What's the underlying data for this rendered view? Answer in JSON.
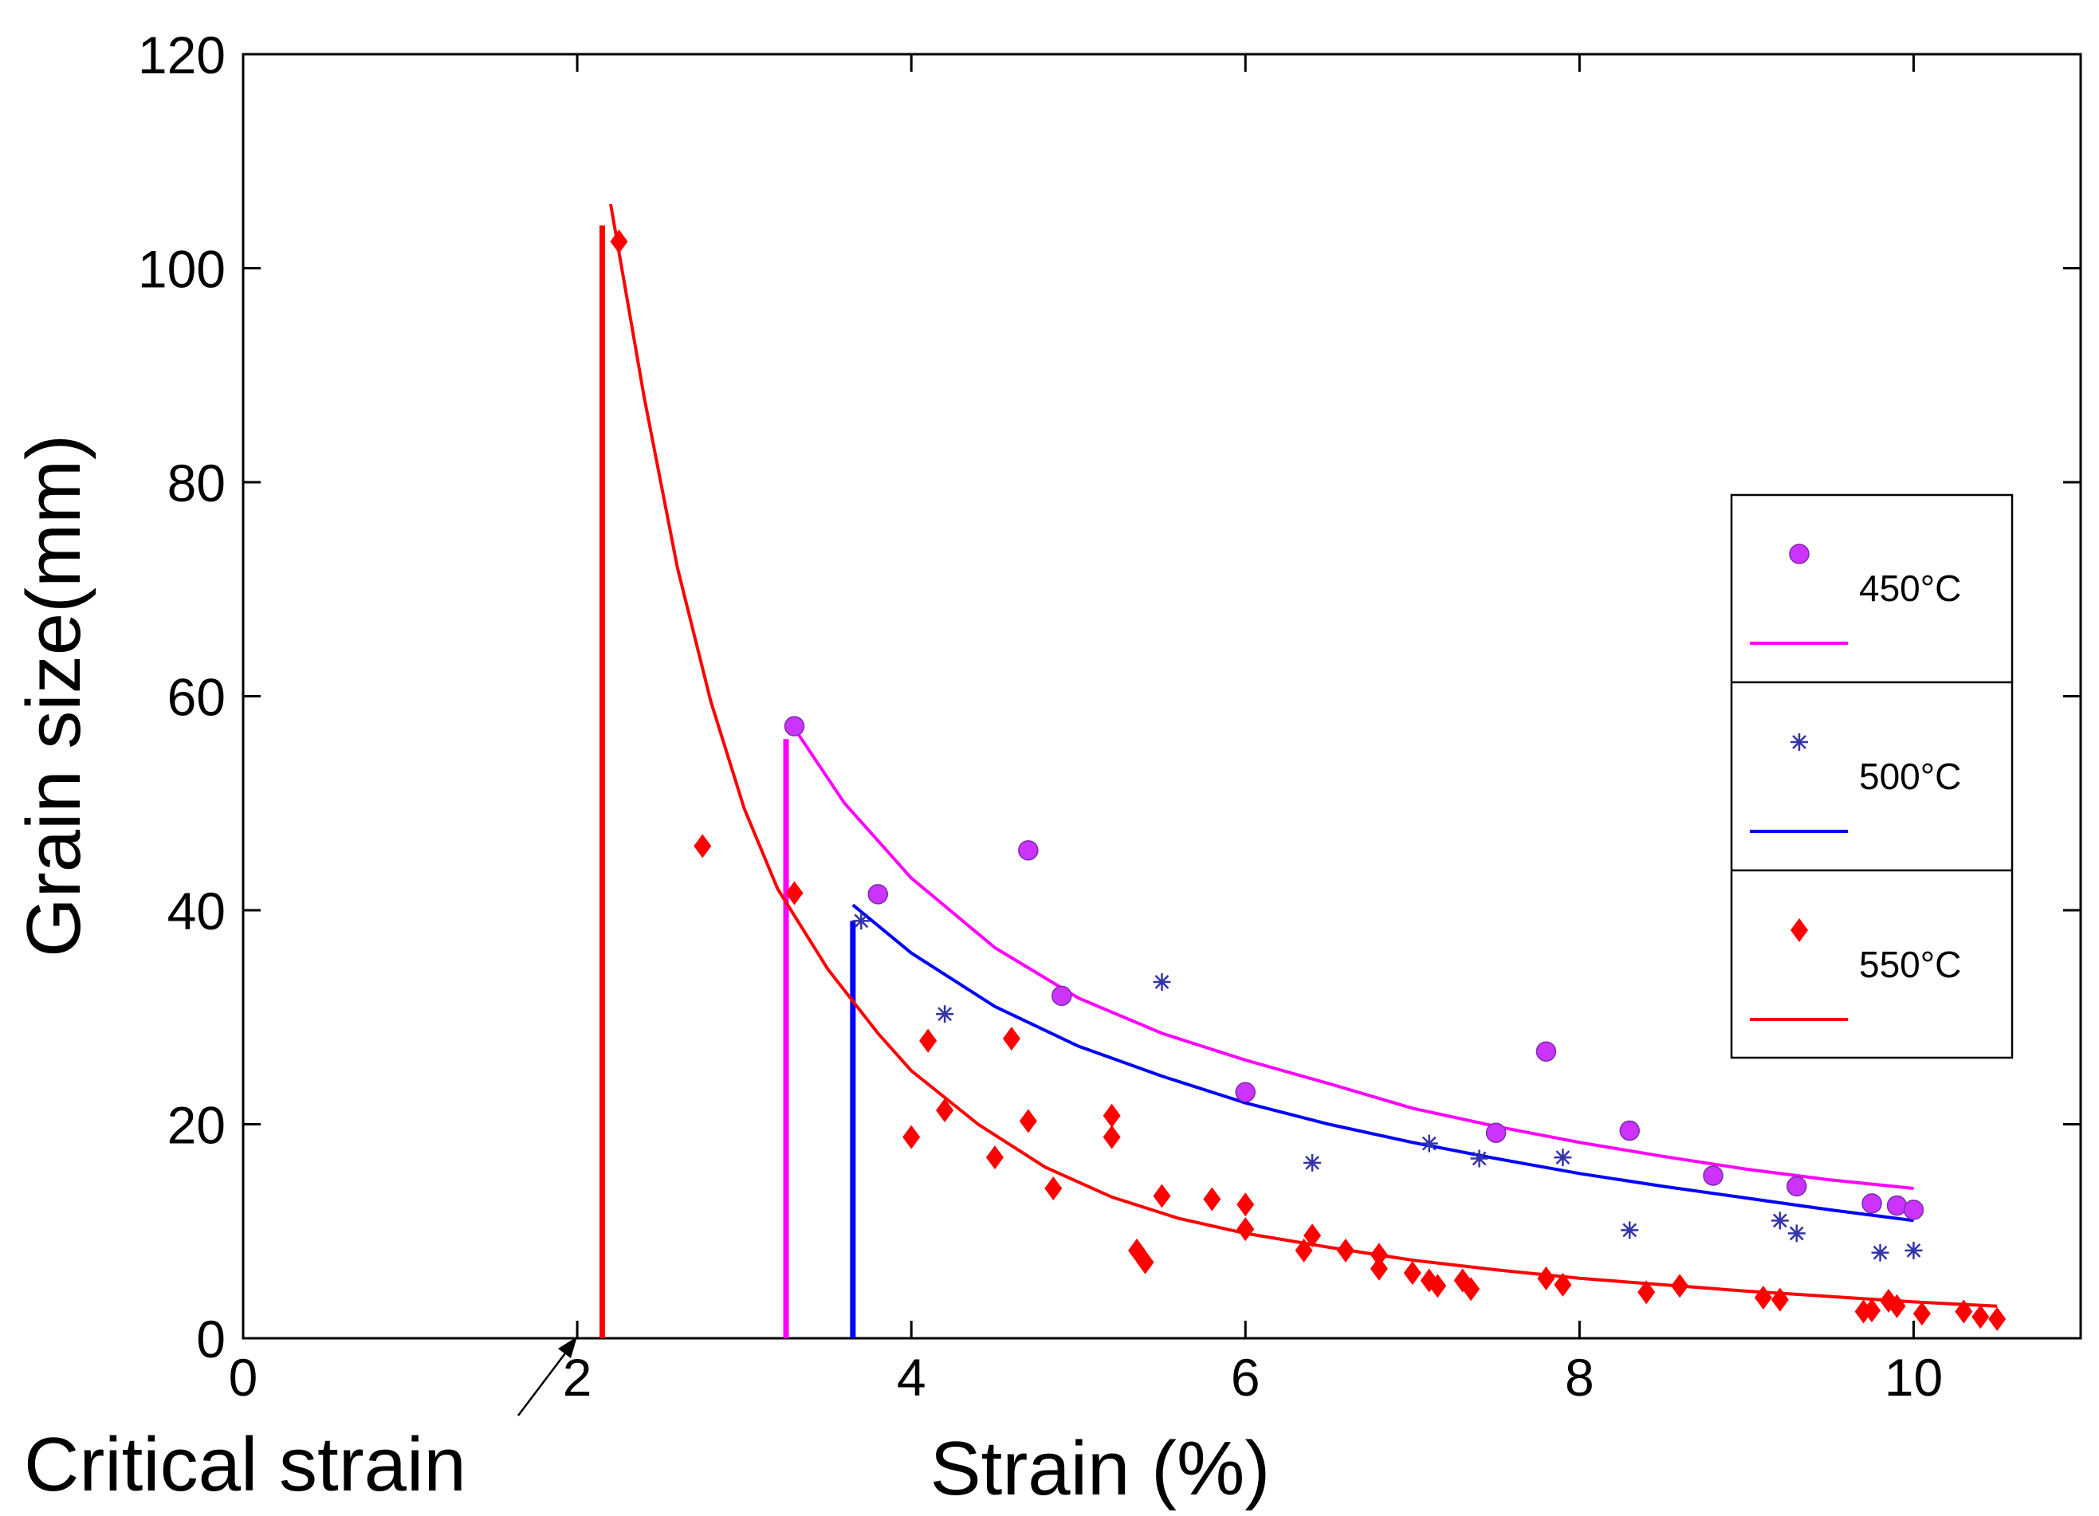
{
  "chart_data": {
    "type": "scatter",
    "title": "",
    "xlabel": "Strain (%)",
    "ylabel": "Grain size(mm)",
    "xlim": [
      0,
      11
    ],
    "ylim": [
      0,
      120
    ],
    "xticks": [
      0,
      2,
      4,
      6,
      8,
      10
    ],
    "yticks": [
      0,
      20,
      40,
      60,
      80,
      100,
      120
    ],
    "grid": false,
    "legend_position": "right",
    "annotation": "Critical strain",
    "annotation_arrow_target": [
      2.0,
      0
    ],
    "series": [
      {
        "name": "450°C",
        "color": "#ff00ff",
        "marker_color": "#cc33ff",
        "marker": "circle",
        "critical_strain": 3.25,
        "vertical_line_height": 56,
        "points": [
          [
            3.3,
            57.2
          ],
          [
            3.8,
            41.5
          ],
          [
            4.7,
            45.6
          ],
          [
            4.9,
            32.0
          ],
          [
            6.0,
            23.0
          ],
          [
            7.5,
            19.2
          ],
          [
            7.8,
            26.8
          ],
          [
            8.3,
            19.4
          ],
          [
            8.8,
            15.2
          ],
          [
            9.3,
            14.2
          ],
          [
            9.75,
            12.6
          ],
          [
            9.9,
            12.4
          ],
          [
            10.0,
            12.0
          ]
        ],
        "fit": [
          [
            3.3,
            57.0
          ],
          [
            3.6,
            50.0
          ],
          [
            4.0,
            43.0
          ],
          [
            4.5,
            36.5
          ],
          [
            5.0,
            31.8
          ],
          [
            5.5,
            28.5
          ],
          [
            6.0,
            26.0
          ],
          [
            6.5,
            23.8
          ],
          [
            7.0,
            21.5
          ],
          [
            7.5,
            19.8
          ],
          [
            8.0,
            18.3
          ],
          [
            8.5,
            17.0
          ],
          [
            9.0,
            15.8
          ],
          [
            9.5,
            14.8
          ],
          [
            10.0,
            14.0
          ]
        ]
      },
      {
        "name": "500°C",
        "color": "#0000ff",
        "marker_color": "#3333aa",
        "marker": "asterisk",
        "critical_strain": 3.65,
        "vertical_line_height": 39,
        "points": [
          [
            3.7,
            39.0
          ],
          [
            4.2,
            30.3
          ],
          [
            5.5,
            33.3
          ],
          [
            6.4,
            16.4
          ],
          [
            7.1,
            18.2
          ],
          [
            7.4,
            16.8
          ],
          [
            7.9,
            16.9
          ],
          [
            8.3,
            10.1
          ],
          [
            9.2,
            11.0
          ],
          [
            9.3,
            9.8
          ],
          [
            9.8,
            8.0
          ],
          [
            10.0,
            8.2
          ]
        ],
        "fit": [
          [
            3.65,
            40.5
          ],
          [
            4.0,
            36.0
          ],
          [
            4.5,
            31.0
          ],
          [
            5.0,
            27.3
          ],
          [
            5.5,
            24.5
          ],
          [
            6.0,
            22.0
          ],
          [
            6.5,
            20.0
          ],
          [
            7.0,
            18.3
          ],
          [
            7.5,
            16.8
          ],
          [
            8.0,
            15.4
          ],
          [
            8.5,
            14.2
          ],
          [
            9.0,
            13.1
          ],
          [
            9.5,
            12.0
          ],
          [
            10.0,
            11.0
          ]
        ]
      },
      {
        "name": "550°C",
        "color": "#ff0000",
        "marker_color": "#ff0000",
        "marker": "diamond",
        "critical_strain": 2.15,
        "vertical_line_height": 104,
        "points": [
          [
            2.25,
            102.5
          ],
          [
            2.75,
            46.0
          ],
          [
            3.3,
            41.6
          ],
          [
            4.0,
            18.8
          ],
          [
            4.1,
            27.8
          ],
          [
            4.2,
            21.3
          ],
          [
            4.5,
            16.9
          ],
          [
            4.6,
            28.0
          ],
          [
            4.7,
            20.3
          ],
          [
            4.85,
            14.0
          ],
          [
            5.2,
            20.8
          ],
          [
            5.2,
            18.8
          ],
          [
            5.35,
            8.2
          ],
          [
            5.4,
            7.1
          ],
          [
            5.5,
            13.3
          ],
          [
            5.8,
            13.0
          ],
          [
            6.0,
            12.5
          ],
          [
            6.0,
            10.2
          ],
          [
            6.35,
            8.2
          ],
          [
            6.4,
            9.6
          ],
          [
            6.6,
            8.2
          ],
          [
            6.8,
            7.8
          ],
          [
            6.8,
            6.5
          ],
          [
            7.0,
            6.1
          ],
          [
            7.1,
            5.4
          ],
          [
            7.15,
            4.9
          ],
          [
            7.3,
            5.4
          ],
          [
            7.35,
            4.6
          ],
          [
            7.8,
            5.6
          ],
          [
            7.9,
            5.0
          ],
          [
            8.4,
            4.3
          ],
          [
            8.6,
            4.9
          ],
          [
            9.1,
            3.8
          ],
          [
            9.2,
            3.6
          ],
          [
            9.7,
            2.5
          ],
          [
            9.75,
            2.6
          ],
          [
            9.85,
            3.5
          ],
          [
            9.9,
            3.0
          ],
          [
            10.05,
            2.3
          ],
          [
            10.3,
            2.5
          ],
          [
            10.4,
            2.0
          ],
          [
            10.5,
            1.8
          ]
        ],
        "fit": [
          [
            2.2,
            106.0
          ],
          [
            2.4,
            88.0
          ],
          [
            2.6,
            72.0
          ],
          [
            2.8,
            59.5
          ],
          [
            3.0,
            49.5
          ],
          [
            3.2,
            42.0
          ],
          [
            3.5,
            34.5
          ],
          [
            3.8,
            28.5
          ],
          [
            4.0,
            25.0
          ],
          [
            4.4,
            20.0
          ],
          [
            4.8,
            16.0
          ],
          [
            5.2,
            13.2
          ],
          [
            5.6,
            11.2
          ],
          [
            6.0,
            9.8
          ],
          [
            6.5,
            8.5
          ],
          [
            7.0,
            7.3
          ],
          [
            7.5,
            6.4
          ],
          [
            8.0,
            5.6
          ],
          [
            8.5,
            5.0
          ],
          [
            9.0,
            4.4
          ],
          [
            9.5,
            3.9
          ],
          [
            10.0,
            3.4
          ],
          [
            10.5,
            3.0
          ]
        ]
      }
    ]
  }
}
